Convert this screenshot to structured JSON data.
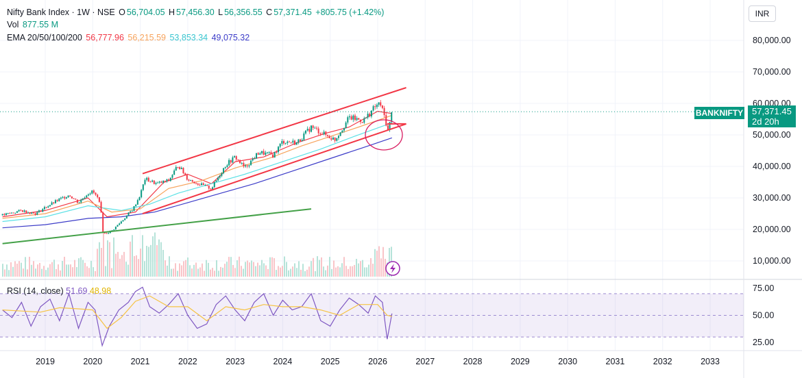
{
  "header": {
    "title": "Nifty Bank Index · 1W · NSE",
    "open_label": "O",
    "open": "56,704.05",
    "high_label": "H",
    "high": "57,456.30",
    "low_label": "L",
    "low": "56,356.55",
    "close_label": "C",
    "close": "57,371.45",
    "change": "+805.75 (+1.42%)",
    "vol_label": "Vol",
    "vol": "877.55 M",
    "ema_label": "EMA 20/50/100/200",
    "ema20": "56,777.96",
    "ema50": "56,215.59",
    "ema100": "53,853.34",
    "ema200": "49,075.32"
  },
  "currency": "INR",
  "price_tag": {
    "symbol": "BANKNIFTY",
    "price": "57,371.45",
    "countdown": "2d 20h"
  },
  "rsi_legend": {
    "label": "RSI (14, close)",
    "rsi": "51.69",
    "ma": "48.98"
  },
  "colors": {
    "up": "#089981",
    "down": "#f23645",
    "ema20": "#f23645",
    "ema50": "#f7a35c",
    "ema100": "#5ce1e6",
    "ema200": "#3b3bc8",
    "channel": "#f23645",
    "support": "#43a047",
    "rsi": "#7e57c2",
    "rsi_ma": "#f6c343",
    "grid": "#f0f3fa"
  },
  "chart_data": {
    "type": "line",
    "price_axis": {
      "ticks": [
        "80,000.00",
        "70,000.00",
        "60,000.00",
        "50,000.00",
        "40,000.00",
        "30,000.00",
        "20,000.00",
        "10,000.00"
      ],
      "ylim": [
        5000,
        85000
      ]
    },
    "rsi_axis": {
      "ticks": [
        "75.00",
        "50.00",
        "25.00"
      ],
      "ylim": [
        20,
        80
      ],
      "bands": [
        30,
        70
      ]
    },
    "time_axis": {
      "ticks": [
        "2019",
        "2020",
        "2021",
        "2022",
        "2023",
        "2024",
        "2025",
        "2026",
        "2027",
        "2028",
        "2029",
        "2030",
        "2031",
        "2032",
        "2033"
      ],
      "xlim": [
        2018.1,
        2033.6
      ]
    },
    "price_series": [
      {
        "x": 2018.1,
        "y": 24500
      },
      {
        "x": 2018.5,
        "y": 26000
      },
      {
        "x": 2018.8,
        "y": 25000
      },
      {
        "x": 2019.0,
        "y": 27000
      },
      {
        "x": 2019.3,
        "y": 29500
      },
      {
        "x": 2019.5,
        "y": 31000
      },
      {
        "x": 2019.7,
        "y": 28500
      },
      {
        "x": 2019.9,
        "y": 31500
      },
      {
        "x": 2020.0,
        "y": 32000
      },
      {
        "x": 2020.15,
        "y": 29000
      },
      {
        "x": 2020.22,
        "y": 18500
      },
      {
        "x": 2020.4,
        "y": 19500
      },
      {
        "x": 2020.6,
        "y": 22500
      },
      {
        "x": 2020.85,
        "y": 26500
      },
      {
        "x": 2021.0,
        "y": 31000
      },
      {
        "x": 2021.1,
        "y": 36000
      },
      {
        "x": 2021.35,
        "y": 34500
      },
      {
        "x": 2021.6,
        "y": 35500
      },
      {
        "x": 2021.8,
        "y": 40500
      },
      {
        "x": 2022.0,
        "y": 36000
      },
      {
        "x": 2022.3,
        "y": 34000
      },
      {
        "x": 2022.5,
        "y": 33000
      },
      {
        "x": 2022.8,
        "y": 40500
      },
      {
        "x": 2023.0,
        "y": 43000
      },
      {
        "x": 2023.2,
        "y": 39500
      },
      {
        "x": 2023.5,
        "y": 44500
      },
      {
        "x": 2023.8,
        "y": 43500
      },
      {
        "x": 2024.0,
        "y": 48000
      },
      {
        "x": 2024.3,
        "y": 47500
      },
      {
        "x": 2024.6,
        "y": 52500
      },
      {
        "x": 2024.9,
        "y": 50000
      },
      {
        "x": 2025.1,
        "y": 48500
      },
      {
        "x": 2025.4,
        "y": 55500
      },
      {
        "x": 2025.7,
        "y": 54500
      },
      {
        "x": 2025.95,
        "y": 59000
      },
      {
        "x": 2026.05,
        "y": 60000
      },
      {
        "x": 2026.15,
        "y": 55500
      },
      {
        "x": 2026.22,
        "y": 51000
      },
      {
        "x": 2026.3,
        "y": 57371
      }
    ],
    "series": [
      {
        "name": "EMA 20",
        "key": "ema20",
        "points": [
          [
            2018.1,
            24000
          ],
          [
            2019.0,
            26000
          ],
          [
            2019.9,
            30000
          ],
          [
            2020.3,
            24000
          ],
          [
            2020.9,
            25500
          ],
          [
            2021.5,
            35000
          ],
          [
            2022.0,
            37500
          ],
          [
            2022.5,
            34500
          ],
          [
            2023.0,
            41500
          ],
          [
            2023.6,
            43000
          ],
          [
            2024.3,
            47500
          ],
          [
            2024.9,
            50500
          ],
          [
            2025.4,
            52500
          ],
          [
            2026.0,
            57500
          ],
          [
            2026.3,
            56778
          ]
        ]
      },
      {
        "name": "EMA 50",
        "key": "ema50",
        "points": [
          [
            2018.1,
            23500
          ],
          [
            2019.0,
            25000
          ],
          [
            2019.9,
            29000
          ],
          [
            2020.4,
            25500
          ],
          [
            2021.0,
            26500
          ],
          [
            2021.6,
            33000
          ],
          [
            2022.3,
            35500
          ],
          [
            2023.0,
            39500
          ],
          [
            2023.7,
            42500
          ],
          [
            2024.4,
            46500
          ],
          [
            2025.0,
            49500
          ],
          [
            2025.6,
            52500
          ],
          [
            2026.3,
            56216
          ]
        ]
      },
      {
        "name": "EMA 100",
        "key": "ema100",
        "points": [
          [
            2018.1,
            22500
          ],
          [
            2019.0,
            24000
          ],
          [
            2019.9,
            27500
          ],
          [
            2020.6,
            26000
          ],
          [
            2021.2,
            28000
          ],
          [
            2021.8,
            31500
          ],
          [
            2022.5,
            34500
          ],
          [
            2023.2,
            37500
          ],
          [
            2024.0,
            41500
          ],
          [
            2024.8,
            45500
          ],
          [
            2025.5,
            49500
          ],
          [
            2026.3,
            53853
          ]
        ]
      },
      {
        "name": "EMA 200",
        "key": "ema200",
        "points": [
          [
            2018.1,
            20500
          ],
          [
            2019.0,
            21500
          ],
          [
            2019.9,
            23500
          ],
          [
            2020.6,
            24000
          ],
          [
            2021.3,
            25500
          ],
          [
            2022.0,
            28500
          ],
          [
            2022.7,
            31500
          ],
          [
            2023.4,
            34500
          ],
          [
            2024.2,
            38500
          ],
          [
            2025.0,
            42500
          ],
          [
            2025.7,
            46000
          ],
          [
            2026.3,
            49075
          ]
        ]
      }
    ],
    "annotations": [
      {
        "name": "channel-upper",
        "color": "channel",
        "points": [
          [
            2021.05,
            37700
          ],
          [
            2026.6,
            65000
          ]
        ]
      },
      {
        "name": "channel-lower",
        "color": "channel",
        "points": [
          [
            2021.05,
            25000
          ],
          [
            2026.6,
            53500
          ]
        ]
      },
      {
        "name": "support-line",
        "color": "support",
        "points": [
          [
            2018.1,
            15500
          ],
          [
            2024.6,
            26500
          ]
        ]
      },
      {
        "name": "channel-extension",
        "color": "channel",
        "points": [
          [
            2026.2,
            53500
          ],
          [
            2026.6,
            53500
          ]
        ]
      }
    ],
    "rsi_series": [
      [
        2018.1,
        55
      ],
      [
        2018.3,
        48
      ],
      [
        2018.5,
        62
      ],
      [
        2018.7,
        40
      ],
      [
        2018.9,
        58
      ],
      [
        2019.1,
        65
      ],
      [
        2019.3,
        45
      ],
      [
        2019.5,
        70
      ],
      [
        2019.7,
        38
      ],
      [
        2019.9,
        62
      ],
      [
        2020.05,
        55
      ],
      [
        2020.2,
        22
      ],
      [
        2020.35,
        40
      ],
      [
        2020.55,
        55
      ],
      [
        2020.75,
        62
      ],
      [
        2020.9,
        72
      ],
      [
        2021.05,
        76
      ],
      [
        2021.2,
        58
      ],
      [
        2021.4,
        52
      ],
      [
        2021.6,
        60
      ],
      [
        2021.8,
        70
      ],
      [
        2022.0,
        50
      ],
      [
        2022.2,
        38
      ],
      [
        2022.4,
        42
      ],
      [
        2022.6,
        60
      ],
      [
        2022.8,
        68
      ],
      [
        2023.0,
        55
      ],
      [
        2023.2,
        45
      ],
      [
        2023.4,
        62
      ],
      [
        2023.6,
        70
      ],
      [
        2023.8,
        50
      ],
      [
        2024.0,
        64
      ],
      [
        2024.2,
        55
      ],
      [
        2024.4,
        58
      ],
      [
        2024.6,
        70
      ],
      [
        2024.8,
        45
      ],
      [
        2025.0,
        40
      ],
      [
        2025.2,
        55
      ],
      [
        2025.4,
        66
      ],
      [
        2025.6,
        60
      ],
      [
        2025.8,
        52
      ],
      [
        2025.95,
        68
      ],
      [
        2026.1,
        62
      ],
      [
        2026.2,
        28
      ],
      [
        2026.3,
        51.69
      ]
    ],
    "rsi_ma_series": [
      [
        2018.1,
        55
      ],
      [
        2018.5,
        54
      ],
      [
        2018.9,
        53
      ],
      [
        2019.3,
        57
      ],
      [
        2019.7,
        56
      ],
      [
        2020.0,
        55
      ],
      [
        2020.3,
        38
      ],
      [
        2020.6,
        48
      ],
      [
        2020.9,
        63
      ],
      [
        2021.2,
        68
      ],
      [
        2021.6,
        58
      ],
      [
        2022.0,
        58
      ],
      [
        2022.4,
        45
      ],
      [
        2022.8,
        58
      ],
      [
        2023.2,
        55
      ],
      [
        2023.6,
        60
      ],
      [
        2024.0,
        58
      ],
      [
        2024.4,
        58
      ],
      [
        2024.8,
        55
      ],
      [
        2025.2,
        50
      ],
      [
        2025.6,
        60
      ],
      [
        2026.0,
        60
      ],
      [
        2026.2,
        50
      ],
      [
        2026.3,
        48.98
      ]
    ]
  }
}
